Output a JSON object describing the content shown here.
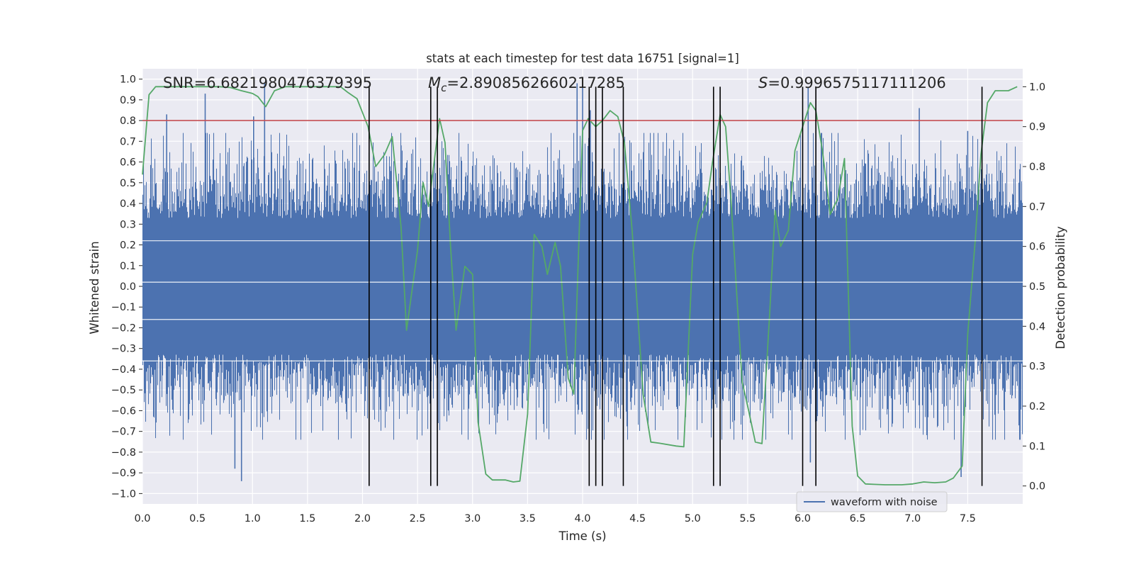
{
  "chart_data": {
    "type": "line",
    "title": "stats at each timestep for test data 16751 [signal=1]",
    "xlabel": "Time (s)",
    "ylabel_left": "Whitened strain",
    "ylabel_right": "Detection probability",
    "xlim": [
      0.0,
      8.0
    ],
    "ylim_left": [
      -1.05,
      1.05
    ],
    "ylim_right": [
      -0.045,
      1.045
    ],
    "xticks": [
      "0.0",
      "0.5",
      "1.0",
      "1.5",
      "2.0",
      "2.5",
      "3.0",
      "3.5",
      "4.0",
      "4.5",
      "5.0",
      "5.5",
      "6.0",
      "6.5",
      "7.0",
      "7.5"
    ],
    "yticks_left": [
      "1.0",
      "0.9",
      "0.8",
      "0.7",
      "0.6",
      "0.5",
      "0.4",
      "0.3",
      "0.2",
      "0.1",
      "0.0",
      "−0.1",
      "−0.2",
      "−0.3",
      "−0.4",
      "−0.5",
      "−0.6",
      "−0.7",
      "−0.8",
      "−0.9",
      "−1.0"
    ],
    "yticks_right": [
      "1.0",
      "0.9",
      "0.8",
      "0.7",
      "0.6",
      "0.5",
      "0.4",
      "0.3",
      "0.2",
      "0.1",
      "0.0"
    ],
    "grid": true,
    "legend_position": "bottom-right",
    "annotations": {
      "snr": "SNR=6.6821980476379395",
      "mc_symbol": "M",
      "mc_sub": "c",
      "mc_value": "=2.8908562660217285",
      "s_symbol": "S",
      "s_value": "=0.9996575117111206"
    },
    "threshold_left": 0.8,
    "event_lines_x": [
      2.06,
      2.62,
      2.68,
      4.06,
      4.12,
      4.18,
      4.37,
      5.19,
      5.25,
      6.0,
      6.12,
      7.63
    ],
    "series": [
      {
        "name": "waveform with noise",
        "axis": "left",
        "style": "noise",
        "envelope": {
          "typical_peak": 0.45,
          "max": 0.98,
          "min": -0.94
        },
        "spikes": [
          [
            0.22,
            0.83
          ],
          [
            0.57,
            0.93
          ],
          [
            0.84,
            -0.88
          ],
          [
            0.9,
            -0.94
          ],
          [
            1.01,
            0.82
          ],
          [
            1.11,
            0.98
          ],
          [
            2.35,
            0.68
          ],
          [
            3.95,
            0.98
          ],
          [
            4.0,
            0.96
          ],
          [
            4.07,
            0.85
          ],
          [
            6.05,
            0.96
          ],
          [
            6.07,
            -0.85
          ],
          [
            7.06,
            0.86
          ],
          [
            7.44,
            -0.92
          ],
          [
            7.5,
            0.75
          ]
        ]
      },
      {
        "name": "",
        "axis": "right",
        "style": "probability",
        "x": [
          0.0,
          0.06,
          0.12,
          0.2,
          0.3,
          0.5,
          0.7,
          0.8,
          0.9,
          1.0,
          1.05,
          1.12,
          1.2,
          1.3,
          1.5,
          1.7,
          1.8,
          1.87,
          1.95,
          2.05,
          2.12,
          2.2,
          2.27,
          2.35,
          2.4,
          2.5,
          2.55,
          2.6,
          2.7,
          2.75,
          2.8,
          2.85,
          2.93,
          3.0,
          3.05,
          3.12,
          3.18,
          3.3,
          3.37,
          3.43,
          3.5,
          3.56,
          3.63,
          3.68,
          3.75,
          3.8,
          3.87,
          3.92,
          4.0,
          4.05,
          4.12,
          4.18,
          4.25,
          4.32,
          4.38,
          4.45,
          4.55,
          4.62,
          4.7,
          4.85,
          4.92,
          5.0,
          5.05,
          5.13,
          5.18,
          5.25,
          5.3,
          5.35,
          5.45,
          5.5,
          5.57,
          5.63,
          5.7,
          5.75,
          5.8,
          5.87,
          5.93,
          6.0,
          6.07,
          6.12,
          6.18,
          6.25,
          6.32,
          6.38,
          6.45,
          6.5,
          6.57,
          6.65,
          6.75,
          6.9,
          7.0,
          7.1,
          7.2,
          7.3,
          7.37,
          7.45,
          7.5,
          7.57,
          7.62,
          7.68,
          7.75,
          7.87,
          7.95
        ],
        "y": [
          0.78,
          0.98,
          1.0,
          1.0,
          1.0,
          1.0,
          1.0,
          0.998,
          0.99,
          0.983,
          0.975,
          0.95,
          0.99,
          1.0,
          1.0,
          1.0,
          1.0,
          0.985,
          0.97,
          0.9,
          0.8,
          0.83,
          0.875,
          0.65,
          0.39,
          0.59,
          0.76,
          0.7,
          0.92,
          0.86,
          0.6,
          0.39,
          0.55,
          0.53,
          0.16,
          0.03,
          0.015,
          0.015,
          0.01,
          0.012,
          0.18,
          0.63,
          0.6,
          0.53,
          0.61,
          0.55,
          0.27,
          0.23,
          0.89,
          0.92,
          0.9,
          0.915,
          0.94,
          0.925,
          0.86,
          0.64,
          0.23,
          0.11,
          0.107,
          0.1,
          0.098,
          0.58,
          0.66,
          0.71,
          0.81,
          0.93,
          0.9,
          0.71,
          0.26,
          0.2,
          0.11,
          0.106,
          0.43,
          0.69,
          0.6,
          0.64,
          0.84,
          0.9,
          0.96,
          0.94,
          0.84,
          0.68,
          0.72,
          0.82,
          0.15,
          0.025,
          0.005,
          0.004,
          0.003,
          0.003,
          0.005,
          0.01,
          0.008,
          0.01,
          0.02,
          0.05,
          0.38,
          0.62,
          0.83,
          0.96,
          0.99,
          0.99,
          1.0
        ]
      }
    ]
  }
}
